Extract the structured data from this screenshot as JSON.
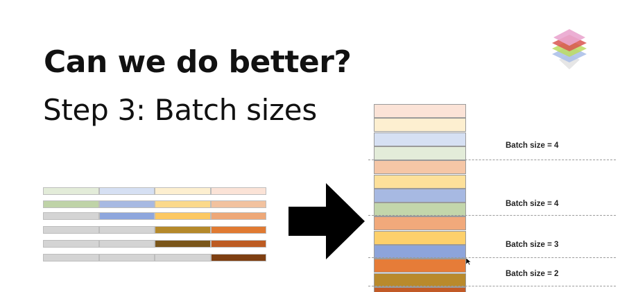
{
  "slide": {
    "title": "Can we do better?",
    "subtitle": "Step 3: Batch sizes"
  },
  "logo": {
    "icon": "layered-stack-logo-icon",
    "colors": [
      "#e8a0c8",
      "#d94c4c",
      "#b8d860",
      "#a0b8e8",
      "#e0e0e0"
    ]
  },
  "arrow": {
    "icon": "right-arrow-icon",
    "color": "#000000"
  },
  "grid": {
    "rows": [
      [
        "#e3ecd9",
        "#d6e0f3",
        "#fdefd0",
        "#fbe3d7"
      ],
      [
        "#bfd3a7",
        "#a7b9e2",
        "#fbd98b",
        "#f2c29f"
      ],
      [
        "#d4d4d4",
        "#8ea6dd",
        "#fcc862",
        "#eea878"
      ],
      [
        "#d4d4d4",
        "#d4d4d4",
        "#b5892a",
        "#e07a32"
      ],
      [
        "#d4d4d4",
        "#d4d4d4",
        "#7a561a",
        "#bd5b22"
      ],
      [
        "#d4d4d4",
        "#d4d4d4",
        "#d4d4d4",
        "#7e3f12"
      ]
    ]
  },
  "stack": {
    "blocks": [
      "#fbe3d7",
      "#fdefd0",
      "#d6e0f3",
      "#e3ecd9",
      "#f5c6a6",
      "#fde09a",
      "#a7b9e2",
      "#c3d6ab",
      "#f1a97b",
      "#fdd06b",
      "#8da4db",
      "#e67c38",
      "#b98a2c",
      "#c25a26"
    ],
    "batches": [
      {
        "label": "Batch size = 4"
      },
      {
        "label": "Batch size = 4"
      },
      {
        "label": "Batch size = 3"
      },
      {
        "label": "Batch size = 2"
      }
    ]
  }
}
